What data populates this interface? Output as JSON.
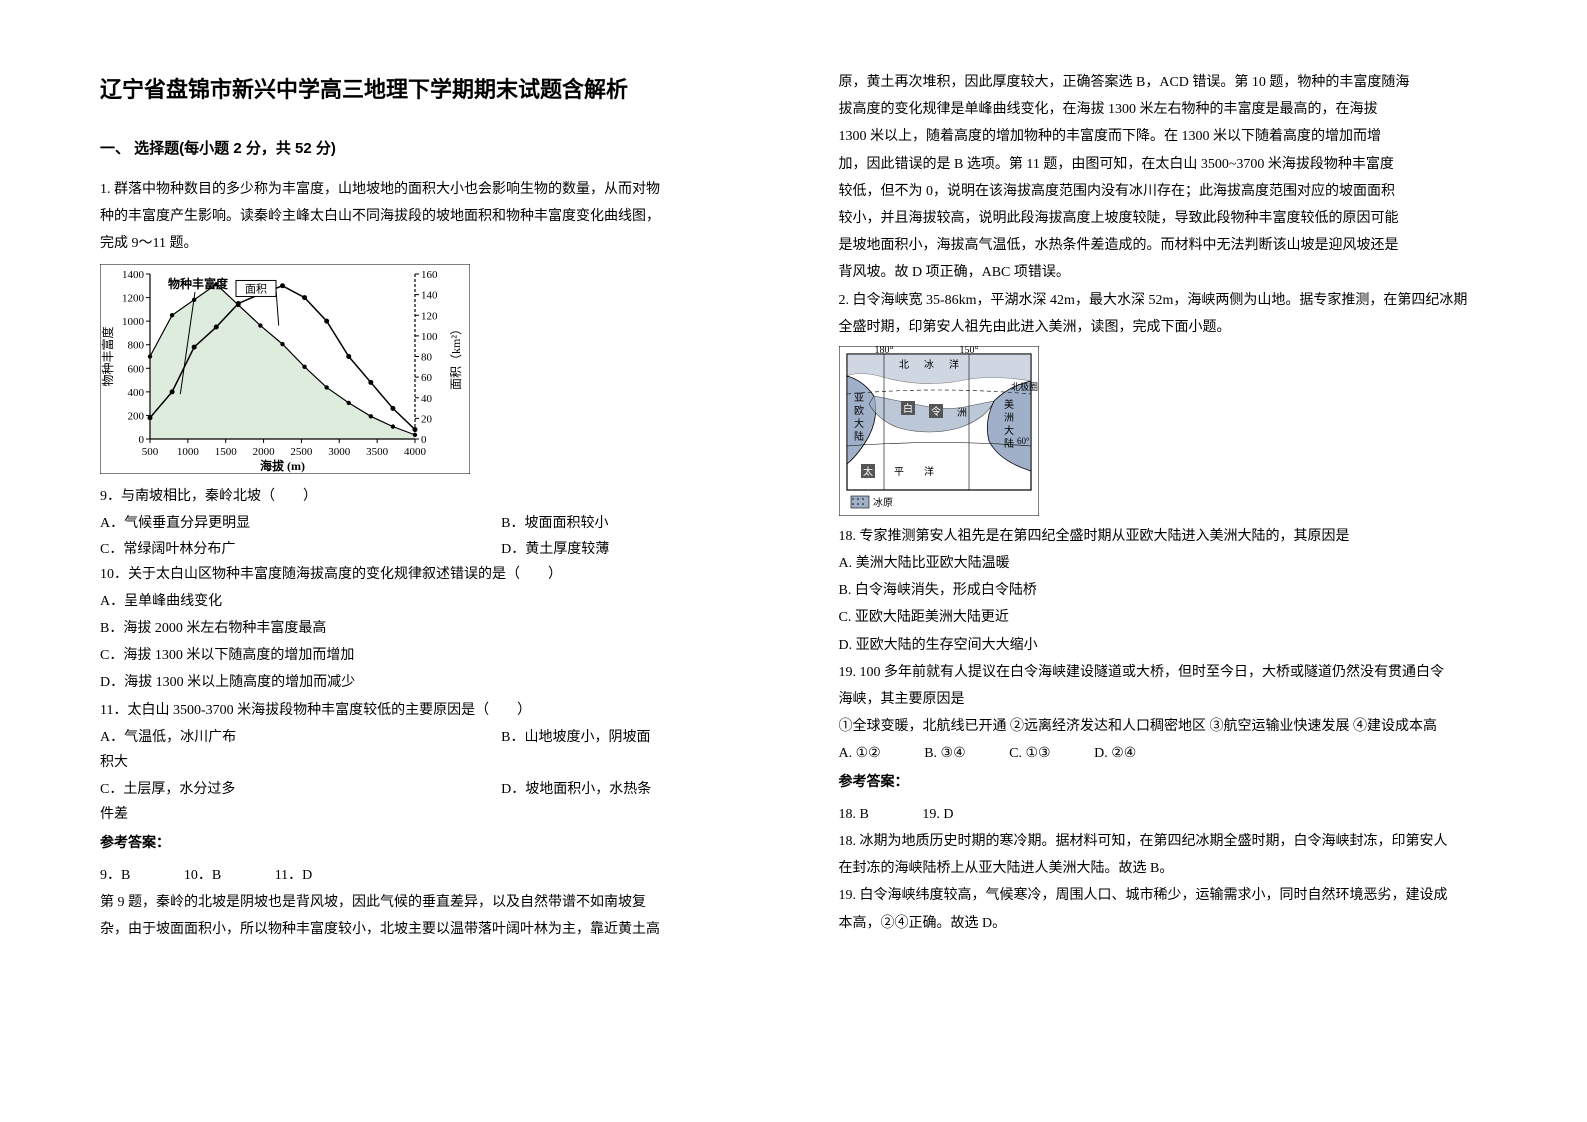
{
  "title": "辽宁省盘锦市新兴中学高三地理下学期期末试题含解析",
  "section1": "一、 选择题(每小题 2 分，共 52 分)",
  "q1": {
    "stem1": "1. 群落中物种数目的多少称为丰富度，山地坡地的面积大小也会影响生物的数量，从而对物",
    "stem2": "种的丰富度产生影响。读秦岭主峰太白山不同海拔段的坡地面积和物种丰富度变化曲线图，",
    "stem3": "完成 9～11 题。",
    "chart": {
      "y1_label": "物种丰富度",
      "y1_vals": [
        0,
        200,
        400,
        600,
        800,
        1000,
        1200,
        1400
      ],
      "x_label": "海拔 (m)",
      "x_vals": [
        500,
        1000,
        1500,
        2000,
        2500,
        3000,
        3500,
        4000
      ],
      "y2_label": "面积（km²）",
      "y2_vals": [
        0,
        20,
        40,
        60,
        80,
        100,
        120,
        140,
        160
      ],
      "legend1": "物种丰富度",
      "legend2": "面积",
      "richness_series": [
        180,
        400,
        780,
        950,
        1150,
        1230,
        1300,
        1200,
        1000,
        700,
        480,
        260,
        80
      ],
      "area_series": [
        80,
        120,
        135,
        150,
        130,
        110,
        92,
        70,
        50,
        35,
        22,
        12,
        4
      ],
      "line_color": "#000000",
      "area_color": "#c8e0c8",
      "bg_color": "#ffffff",
      "axis_color": "#000000",
      "font_size": 11
    },
    "q9": {
      "text": "9．与南坡相比，秦岭北坡（　　）",
      "optA": "A．气候垂直分异更明显",
      "optB": "B．坡面面积较小",
      "optC": "C．常绿阔叶林分布广",
      "optD": "D．黄土厚度较薄"
    },
    "q10": {
      "text": "10．关于太白山区物种丰富度随海拔高度的变化规律叙述错误的是（　　）",
      "optA": "A．呈单峰曲线变化",
      "optB": "B．海拔 2000 米左右物种丰富度最高",
      "optC": "C．海拔 1300 米以下随高度的增加而增加",
      "optD": "D．海拔 1300 米以上随高度的增加而减少"
    },
    "q11": {
      "text": "11．太白山 3500-3700 米海拔段物种丰富度较低的主要原因是（　　）",
      "optA": "A．气温低，冰川广布",
      "optB": "B．山地坡度小，阴坡面",
      "optB2": "积大",
      "optC": "C．土层厚，水分过多",
      "optD": "D．坡地面积小，水热条",
      "optD2": "件差"
    },
    "ansHead": "参考答案：",
    "ansLine": {
      "a9": "9．B",
      "a10": "10．B",
      "a11": "11．D"
    },
    "expl1": "第 9 题，秦岭的北坡是阴坡也是背风坡，因此气候的垂直差异，以及自然带谱不如南坡复",
    "expl2": "杂，由于坡面面积小，所以物种丰富度较小，北坡主要以温带落叶阔叶林为主，靠近黄土高"
  },
  "col2": {
    "expl3": "原，黄土再次堆积，因此厚度较大，正确答案选 B，ACD 错误。第 10 题，物种的丰富度随海",
    "expl4": "拔高度的变化规律是单峰曲线变化，在海拔 1300 米左右物种的丰富度是最高的，在海拔",
    "expl5": "1300 米以上，随着高度的增加物种的丰富度而下降。在 1300 米以下随着高度的增加而增",
    "expl6": "加，因此错误的是 B 选项。第 11 题，由图可知，在太白山 3500~3700 米海拔段物种丰富度",
    "expl7": "较低，但不为 0，说明在该海拔高度范围内没有冰川存在；此海拔高度范围对应的坡面面积",
    "expl8": "较小，并且海拔较高，说明此段海拔高度上坡度较陡，导致此段物种丰富度较低的原因可能",
    "expl9": "是坡地面积小，海拔高气温低，水热条件差造成的。而材料中无法判断该山坡是迎风坡还是",
    "expl10": "背风坡。故 D 项正确，ABC 项错误。"
  },
  "q2": {
    "stem1": "2. 白令海峡宽 35-86km，平湖水深 42m，最大水深 52m，海峡两侧为山地。据专家推测，在第四纪冰期",
    "stem2": "全盛时期，印第安人祖先由此进入美洲，读图，完成下面小题。",
    "map": {
      "lon1": "180°",
      "lon2": "150°",
      "lab_ice": "冰",
      "lab_ocean": "洋",
      "lab_asia1": "亚",
      "lab_asia2": "欧",
      "lab_asia3": "大",
      "lab_asia4": "陆",
      "lab_na1": "美",
      "lab_na2": "洲",
      "lab_na3": "大",
      "lab_na4": "陆",
      "lab_arctic": "北极圈",
      "lab_pac1": "太",
      "lab_pac2": "平",
      "lab_pac3": "洋",
      "lat60": "60°",
      "lab_center1": "白",
      "lab_center2": "令",
      "lab_center3": "洲",
      "legend_ice": "冰原",
      "land_color": "#a0b0c8",
      "sea_color": "#ffffff",
      "line_color": "#000000",
      "font_size": 10
    },
    "q18": {
      "text": "18. 专家推测第安人祖先是在第四纪全盛时期从亚欧大陆进入美洲大陆的，其原因是",
      "optA": "A. 美洲大陆比亚欧大陆温暖",
      "optB": "B. 白令海峡消失，形成白令陆桥",
      "optC": "C. 亚欧大陆距美洲大陆更近",
      "optD": "D. 亚欧大陆的生存空间大大缩小"
    },
    "q19": {
      "text1": "19. 100 多年前就有人提议在白令海峡建设隧道或大桥，但时至今日，大桥或隧道仍然没有贯通白令",
      "text2": "海峡，其主要原因是",
      "text3": "①全球变暖，北航线已开通 ②远离经济发达和人口稠密地区 ③航空运输业快速发展 ④建设成本高",
      "optA": "A. ①②",
      "optB": "B. ③④",
      "optC": "C. ①③",
      "optD": "D. ②④"
    },
    "ansHead": "参考答案：",
    "ans": {
      "a18": "18. B",
      "a19": "19. D"
    },
    "expl1": "18. 冰期为地质历史时期的寒冷期。据材料可知，在第四纪冰期全盛时期，白令海峡封冻，印第安人",
    "expl2": "在封冻的海峡陆桥上从亚大陆进人美洲大陆。故选 B。",
    "expl3": "19. 白令海峡纬度较高，气候寒冷，周围人口、城市稀少，运输需求小，同时自然环境恶劣，建设成",
    "expl4": "本高，②④正确。故选 D。"
  }
}
